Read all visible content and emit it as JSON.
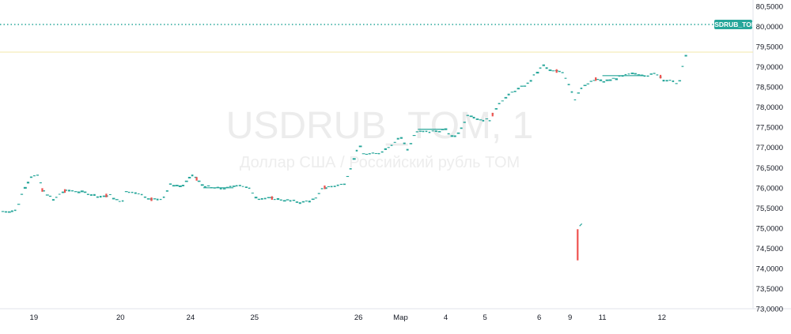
{
  "chart_data": {
    "type": "candlestick",
    "title": "",
    "xlabel": "",
    "ylabel": "",
    "watermark": {
      "symbol": "USDRUB_TOM, 1",
      "description": "Доллар США / Российский рубль TOM"
    },
    "symbol_badge": "USDRUB_TOM",
    "current_price": 80.08,
    "ylim": [
      73.0,
      80.5
    ],
    "y_ticks": [
      "80,5000",
      "80,0000",
      "79,5000",
      "79,0000",
      "78,5000",
      "78,0000",
      "77,5000",
      "77,0000",
      "76,5000",
      "76,0000",
      "75,5000",
      "75,0000",
      "74,5000",
      "74,0000",
      "73,5000",
      "73,0000"
    ],
    "x_ticks": [
      "19",
      "20",
      "24",
      "25",
      "26",
      "Мар",
      "4",
      "5",
      "6",
      "9",
      "11",
      "12"
    ],
    "x_tick_positions": [
      0.045,
      0.16,
      0.253,
      0.338,
      0.476,
      0.532,
      0.592,
      0.644,
      0.716,
      0.757,
      0.8,
      0.879
    ],
    "grid": false,
    "colors": {
      "up": "#26a69a",
      "down": "#ef5350",
      "price_line": "#26a69a",
      "axis": "#e0e3eb",
      "text": "#131722"
    },
    "price": [
      [
        0.0,
        75.42
      ],
      [
        0.02,
        75.45
      ],
      [
        0.03,
        76.0
      ],
      [
        0.04,
        76.3
      ],
      [
        0.05,
        76.3
      ],
      [
        0.055,
        75.95
      ],
      [
        0.07,
        75.7
      ],
      [
        0.08,
        75.9
      ],
      [
        0.09,
        75.95
      ],
      [
        0.11,
        75.9
      ],
      [
        0.13,
        75.8
      ],
      [
        0.145,
        75.82
      ],
      [
        0.16,
        75.62
      ],
      [
        0.165,
        75.9
      ],
      [
        0.18,
        75.9
      ],
      [
        0.2,
        75.72
      ],
      [
        0.215,
        75.75
      ],
      [
        0.225,
        76.1
      ],
      [
        0.24,
        76.05
      ],
      [
        0.255,
        76.35
      ],
      [
        0.265,
        76.1
      ],
      [
        0.28,
        76.0
      ],
      [
        0.3,
        76.0
      ],
      [
        0.315,
        76.1
      ],
      [
        0.33,
        75.98
      ],
      [
        0.34,
        75.75
      ],
      [
        0.36,
        75.75
      ],
      [
        0.38,
        75.7
      ],
      [
        0.4,
        75.65
      ],
      [
        0.42,
        75.75
      ],
      [
        0.425,
        76.0
      ],
      [
        0.44,
        76.05
      ],
      [
        0.455,
        76.1
      ],
      [
        0.465,
        76.55
      ],
      [
        0.475,
        77.1
      ],
      [
        0.48,
        76.85
      ],
      [
        0.5,
        76.85
      ],
      [
        0.52,
        77.1
      ],
      [
        0.53,
        77.3
      ],
      [
        0.54,
        76.95
      ],
      [
        0.55,
        77.4
      ],
      [
        0.57,
        77.4
      ],
      [
        0.59,
        77.45
      ],
      [
        0.6,
        77.25
      ],
      [
        0.61,
        77.45
      ],
      [
        0.62,
        77.85
      ],
      [
        0.635,
        77.7
      ],
      [
        0.65,
        77.7
      ],
      [
        0.66,
        78.1
      ],
      [
        0.68,
        78.4
      ],
      [
        0.7,
        78.6
      ],
      [
        0.71,
        78.85
      ],
      [
        0.72,
        79.05
      ],
      [
        0.73,
        78.9
      ],
      [
        0.745,
        78.9
      ],
      [
        0.755,
        78.55
      ],
      [
        0.762,
        78.2
      ],
      [
        0.768,
        78.45
      ],
      [
        0.78,
        78.6
      ],
      [
        0.79,
        78.7
      ],
      [
        0.8,
        78.65
      ],
      [
        0.82,
        78.75
      ],
      [
        0.84,
        78.85
      ],
      [
        0.86,
        78.8
      ],
      [
        0.87,
        78.85
      ],
      [
        0.88,
        78.7
      ],
      [
        0.89,
        78.65
      ],
      [
        0.9,
        78.6
      ],
      [
        0.905,
        79.0
      ],
      [
        0.91,
        79.35
      ]
    ],
    "spike": {
      "x": 0.767,
      "high": 75.05,
      "low": 74.2
    },
    "red_markers": [
      0.055,
      0.085,
      0.14,
      0.2,
      0.26,
      0.36,
      0.43,
      0.653,
      0.738,
      0.79,
      0.876
    ]
  }
}
